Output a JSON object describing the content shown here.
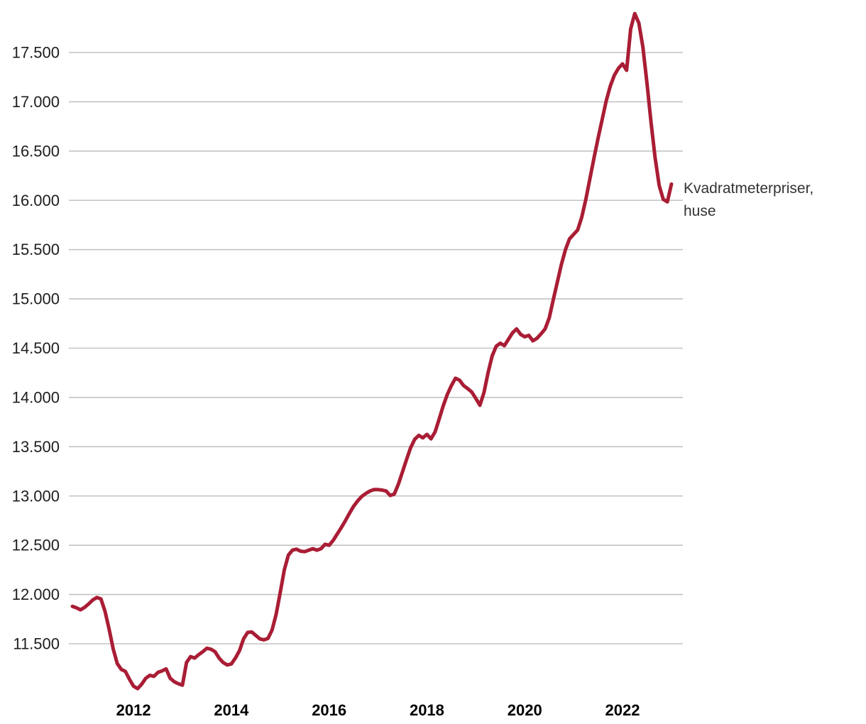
{
  "chart": {
    "series_label_line1": "Kvadratmeterpriser,",
    "series_label_line2": "huse",
    "colors": {
      "line": "#a91d35",
      "grid": "#c3c3c3",
      "y_tick_text": "#1d1d1d",
      "x_tick_text": "#000000",
      "series_label_text": "#333333",
      "background": "#ffffff"
    },
    "y_axis": {
      "tick_labels": [
        "17.500",
        "17.000",
        "16.500",
        "16.000",
        "15.500",
        "15.000",
        "14.500",
        "14.000",
        "13.500",
        "13.000",
        "12.500",
        "12.000",
        "11.500"
      ],
      "tick_values": [
        17500,
        17000,
        16500,
        16000,
        15500,
        15000,
        14500,
        14000,
        13500,
        13000,
        12500,
        12000,
        11500
      ]
    },
    "x_axis": {
      "tick_labels": [
        "2012",
        "2014",
        "2016",
        "2018",
        "2020",
        "2022"
      ],
      "tick_years": [
        2012,
        2014,
        2016,
        2018,
        2020,
        2022
      ]
    }
  },
  "chart_data": {
    "type": "line",
    "title": "",
    "legend_position": "right-of-line-end",
    "grid": "horizontal-only",
    "x_frequency": "monthly",
    "x_start": "2010-10",
    "x_end": "2023-01",
    "ylim": [
      11000,
      17950
    ],
    "y_tick_step": 500,
    "x_tick_years": [
      2012,
      2014,
      2016,
      2018,
      2020,
      2022
    ],
    "series": [
      {
        "name": "Kvadratmeterpriser, huse",
        "color": "#a91d35",
        "values": [
          11880,
          11865,
          11845,
          11870,
          11905,
          11945,
          11970,
          11955,
          11830,
          11650,
          11450,
          11300,
          11240,
          11220,
          11140,
          11070,
          11045,
          11090,
          11150,
          11180,
          11170,
          11210,
          11225,
          11245,
          11150,
          11115,
          11095,
          11080,
          11310,
          11370,
          11355,
          11390,
          11420,
          11455,
          11445,
          11420,
          11355,
          11310,
          11285,
          11295,
          11355,
          11430,
          11550,
          11615,
          11620,
          11585,
          11550,
          11540,
          11555,
          11640,
          11800,
          12020,
          12250,
          12400,
          12450,
          12460,
          12440,
          12435,
          12450,
          12465,
          12450,
          12465,
          12510,
          12500,
          12550,
          12615,
          12680,
          12750,
          12825,
          12895,
          12950,
          12995,
          13025,
          13050,
          13065,
          13065,
          13060,
          13050,
          13005,
          13020,
          13120,
          13245,
          13370,
          13490,
          13575,
          13615,
          13590,
          13625,
          13580,
          13650,
          13780,
          13915,
          14030,
          14120,
          14195,
          14175,
          14120,
          14090,
          14055,
          13990,
          13920,
          14050,
          14250,
          14420,
          14520,
          14550,
          14525,
          14590,
          14655,
          14695,
          14640,
          14615,
          14630,
          14575,
          14600,
          14645,
          14695,
          14805,
          14990,
          15170,
          15350,
          15500,
          15610,
          15655,
          15700,
          15830,
          16010,
          16220,
          16430,
          16630,
          16820,
          17010,
          17160,
          17270,
          17340,
          17385,
          17320,
          17740,
          17895,
          17800,
          17555,
          17190,
          16790,
          16430,
          16150,
          16010,
          15985,
          16165
        ]
      }
    ]
  }
}
